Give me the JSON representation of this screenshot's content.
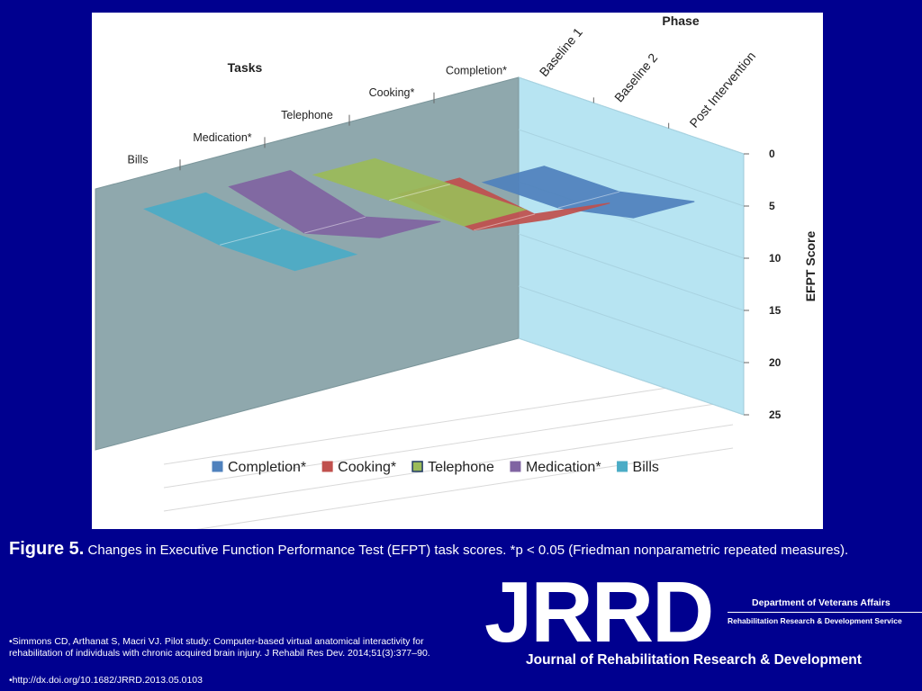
{
  "chart_data": {
    "type": "3d-wall",
    "title": "Tasks",
    "phase_title": "Phase",
    "ylabel": "EFPT Score",
    "ylim": [
      0,
      25
    ],
    "y_ticks": [
      "0",
      "5",
      "10",
      "15",
      "20",
      "25"
    ],
    "tasks": [
      "Completion*",
      "Cooking*",
      "Telephone",
      "Medication*",
      "Bills"
    ],
    "phases": [
      "Baseline 1",
      "Baseline 2",
      "Post Intervention"
    ],
    "series": [
      {
        "name": "Completion*",
        "color": "#4f81bd",
        "values": [
          7,
          7,
          5.5
        ]
      },
      {
        "name": "Cooking*",
        "color": "#c0504d",
        "values": [
          6,
          7,
          3.5
        ]
      },
      {
        "name": "Telephone",
        "color": "#9bbb59",
        "values": [
          2,
          2,
          2
        ]
      },
      {
        "name": "Medication*",
        "color": "#8064a2",
        "values": [
          1,
          3,
          1
        ]
      },
      {
        "name": "Bills",
        "color": "#4bacc6",
        "values": [
          1,
          2,
          2
        ]
      }
    ],
    "legend_position": "bottom"
  },
  "caption": {
    "figure_label": "Figure 5.",
    "text": "Changes in Executive Function Performance Test (EFPT) task scores. *p < 0.05 (Friedman nonparametric repeated measures)."
  },
  "references": [
    "•Simmons CD, Arthanat S, Macri VJ. Pilot study: Computer-based virtual anatomical interactivity for rehabilitation of individuals with chronic acquired brain injury. J Rehabil Res Dev. 2014;51(3):377–90.",
    "•http://dx.doi.org/10.1682/JRRD.2013.05.0103"
  ],
  "logo": {
    "name": "JRRD",
    "department": "Department of Veterans Affairs",
    "service": "Rehabilitation Research & Development Service",
    "journal": "Journal of Rehabilitation Research & Development"
  }
}
